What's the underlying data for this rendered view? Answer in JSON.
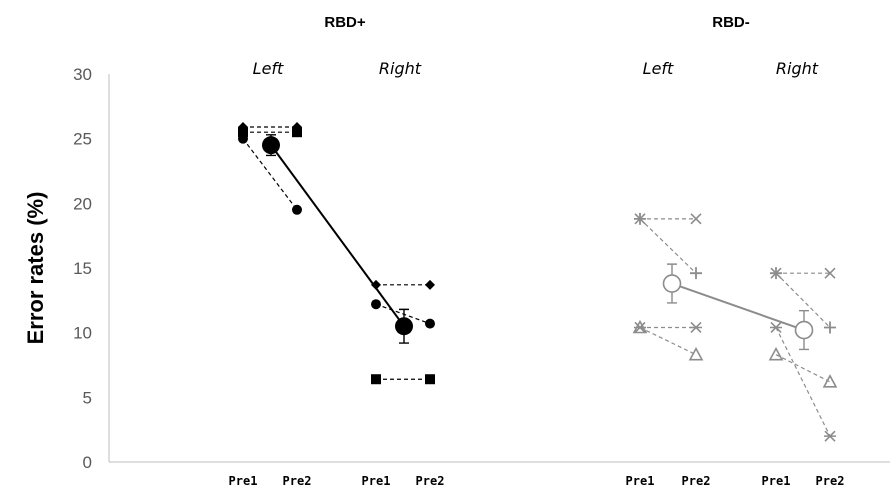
{
  "chart_data": {
    "type": "scatter",
    "ylabel": "Error rates (%)",
    "ylim": [
      0,
      30
    ],
    "yticks": [
      "0",
      "5",
      "10",
      "15",
      "20",
      "25",
      "30"
    ],
    "groups": [
      {
        "title": "RBD+",
        "sides": [
          "Left",
          "Right"
        ],
        "categories": [
          "Pre1",
          "Pre2",
          "Pre1",
          "Pre2"
        ],
        "individuals": [
          {
            "marker": "diamond",
            "values": [
              25.9,
              25.9,
              13.7,
              13.7
            ]
          },
          {
            "marker": "circle",
            "values": [
              25.0,
              19.5,
              12.2,
              10.7
            ]
          },
          {
            "marker": "square",
            "values": [
              25.5,
              25.5,
              6.4,
              6.4
            ]
          }
        ],
        "mean": {
          "marker": "circle-filled",
          "values": [
            24.5,
            10.5
          ],
          "errors": [
            0.8,
            1.3
          ]
        }
      },
      {
        "title": "RBD-",
        "sides": [
          "Left",
          "Right"
        ],
        "categories": [
          "Pre1",
          "Pre2",
          "Pre1",
          "Pre2"
        ],
        "individuals": [
          {
            "marker": "x",
            "values": [
              18.8,
              18.8,
              14.6,
              14.6
            ]
          },
          {
            "marker": "asterisk",
            "values": [
              10.4,
              10.4,
              10.4,
              2.0
            ]
          },
          {
            "marker": "plus",
            "values": [
              18.8,
              14.6,
              14.6,
              10.4
            ]
          },
          {
            "marker": "triangle",
            "values": [
              10.4,
              8.3,
              8.3,
              6.2
            ]
          }
        ],
        "mean": {
          "marker": "circle-open",
          "values": [
            13.8,
            10.2
          ],
          "errors": [
            1.5,
            1.5
          ]
        }
      }
    ]
  },
  "colors": {
    "rbd_plus": "#000000",
    "rbd_minus": "#8c8c8c",
    "axis": "#bfbfbf",
    "tick": "#595959"
  }
}
